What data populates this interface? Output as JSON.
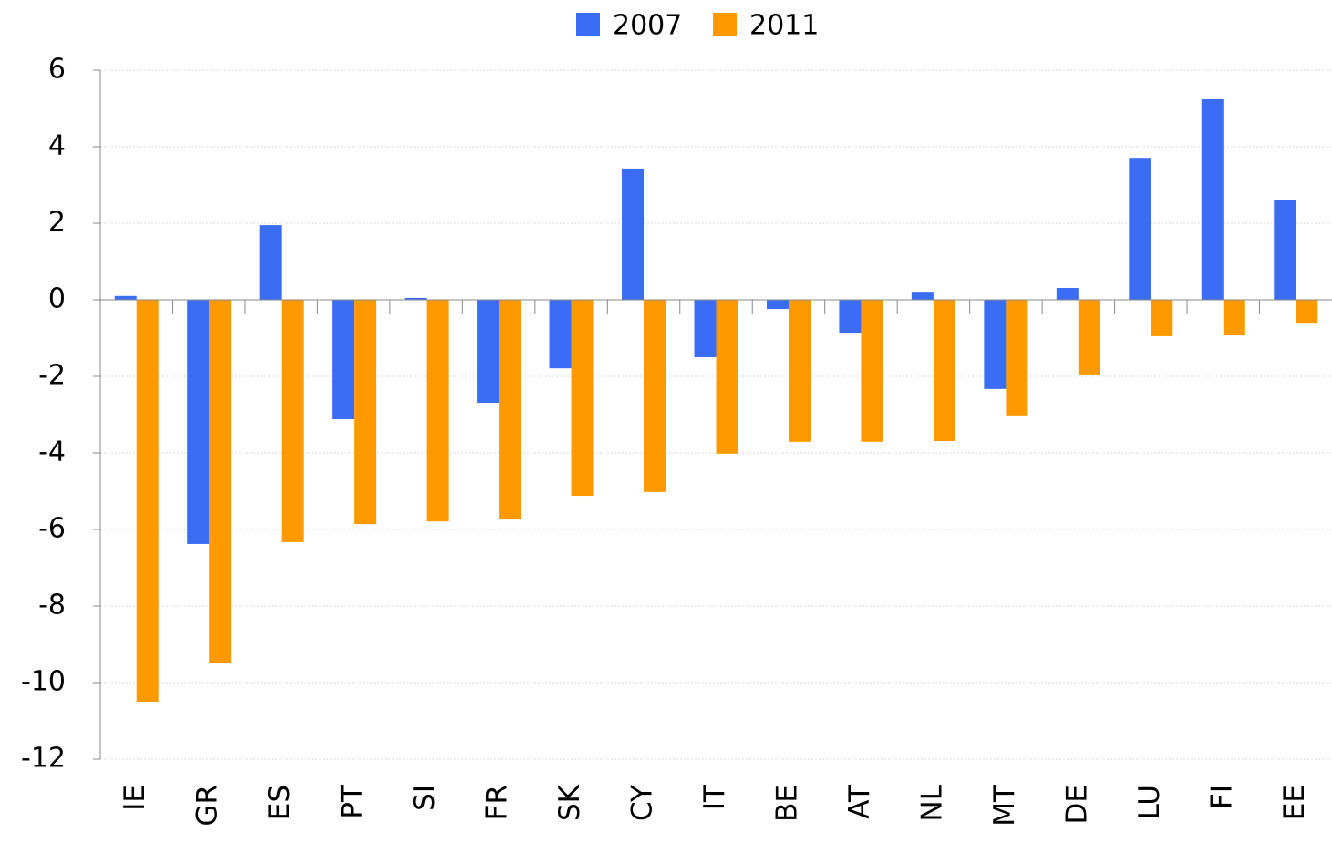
{
  "chart_data": {
    "type": "bar",
    "categories": [
      "IE",
      "GR",
      "ES",
      "PT",
      "SI",
      "FR",
      "SK",
      "CY",
      "IT",
      "BE",
      "AT",
      "NL",
      "MT",
      "DE",
      "LU",
      "FI",
      "EE"
    ],
    "series": [
      {
        "name": "2007",
        "color": "#3a6cf4",
        "values": [
          0.1,
          -6.38,
          1.95,
          -3.12,
          0.05,
          -2.69,
          -1.79,
          3.43,
          -1.5,
          -0.24,
          -0.86,
          0.21,
          -2.33,
          0.31,
          3.71,
          5.24,
          2.6
        ]
      },
      {
        "name": "2011",
        "color": "#ff9900",
        "values": [
          -10.5,
          -9.48,
          -6.33,
          -5.86,
          -5.79,
          -5.74,
          -5.12,
          -5.02,
          -4.02,
          -3.71,
          -3.71,
          -3.69,
          -3.02,
          -1.95,
          -0.95,
          -0.93,
          -0.6
        ]
      }
    ],
    "ylim": [
      -12,
      6
    ],
    "yticks": [
      -12,
      -10,
      -8,
      -6,
      -4,
      -2,
      0,
      2,
      4,
      6
    ],
    "grid": true,
    "legend": "top"
  }
}
